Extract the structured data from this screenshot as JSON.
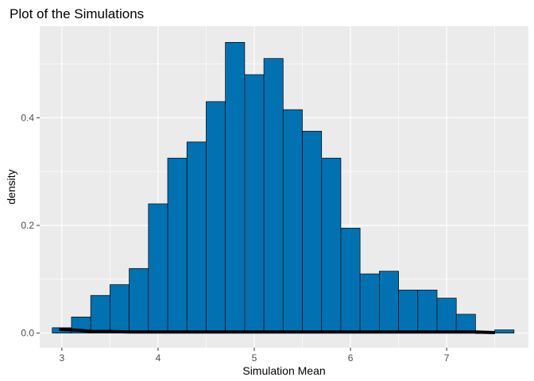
{
  "chart_data": {
    "type": "bar",
    "title": "Plot of the Simulations",
    "xlabel": "Simulation Mean",
    "ylabel": "density",
    "xlim": [
      2.77,
      7.85
    ],
    "ylim": [
      -0.027,
      0.57
    ],
    "x_ticks": [
      3,
      4,
      5,
      6,
      7
    ],
    "x_tick_labels": [
      "3",
      "4",
      "5",
      "6",
      "7"
    ],
    "y_ticks": [
      0.0,
      0.2,
      0.4
    ],
    "y_tick_labels": [
      "0.0",
      "0.2",
      "0.4"
    ],
    "grid": true,
    "bin_width": 0.2,
    "bins": [
      {
        "x0": 2.9,
        "x1": 3.1,
        "density": 0.01
      },
      {
        "x0": 3.1,
        "x1": 3.3,
        "density": 0.03
      },
      {
        "x0": 3.3,
        "x1": 3.5,
        "density": 0.07
      },
      {
        "x0": 3.5,
        "x1": 3.7,
        "density": 0.09
      },
      {
        "x0": 3.7,
        "x1": 3.9,
        "density": 0.12
      },
      {
        "x0": 3.9,
        "x1": 4.1,
        "density": 0.24
      },
      {
        "x0": 4.1,
        "x1": 4.3,
        "density": 0.325
      },
      {
        "x0": 4.3,
        "x1": 4.5,
        "density": 0.355
      },
      {
        "x0": 4.5,
        "x1": 4.7,
        "density": 0.43
      },
      {
        "x0": 4.7,
        "x1": 4.9,
        "density": 0.54
      },
      {
        "x0": 4.9,
        "x1": 5.1,
        "density": 0.48
      },
      {
        "x0": 5.1,
        "x1": 5.3,
        "density": 0.51
      },
      {
        "x0": 5.3,
        "x1": 5.5,
        "density": 0.415
      },
      {
        "x0": 5.5,
        "x1": 5.7,
        "density": 0.375
      },
      {
        "x0": 5.7,
        "x1": 5.9,
        "density": 0.325
      },
      {
        "x0": 5.9,
        "x1": 6.1,
        "density": 0.195
      },
      {
        "x0": 6.1,
        "x1": 6.3,
        "density": 0.11
      },
      {
        "x0": 6.3,
        "x1": 6.5,
        "density": 0.115
      },
      {
        "x0": 6.5,
        "x1": 6.7,
        "density": 0.08
      },
      {
        "x0": 6.7,
        "x1": 6.9,
        "density": 0.08
      },
      {
        "x0": 6.9,
        "x1": 7.1,
        "density": 0.065
      },
      {
        "x0": 7.1,
        "x1": 7.3,
        "density": 0.035
      },
      {
        "x0": 7.3,
        "x1": 7.5,
        "density": 0.0
      },
      {
        "x0": 7.5,
        "x1": 7.7,
        "density": 0.006
      }
    ],
    "density_curve": {
      "x": [
        2.97,
        3.2,
        3.3,
        3.5,
        3.7,
        4.0,
        4.5,
        5.0,
        5.5,
        6.0,
        6.5,
        7.0,
        7.3,
        7.5
      ],
      "y": [
        0.007,
        0.005,
        0.003,
        0.003,
        0.002,
        0.002,
        0.002,
        0.002,
        0.002,
        0.002,
        0.002,
        0.002,
        0.002,
        0.001
      ]
    },
    "colors": {
      "panel": "#ebebeb",
      "grid": "#ffffff",
      "bar_fill": "#0072b2",
      "bar_outline": "#000000",
      "curve": "#000000"
    }
  }
}
